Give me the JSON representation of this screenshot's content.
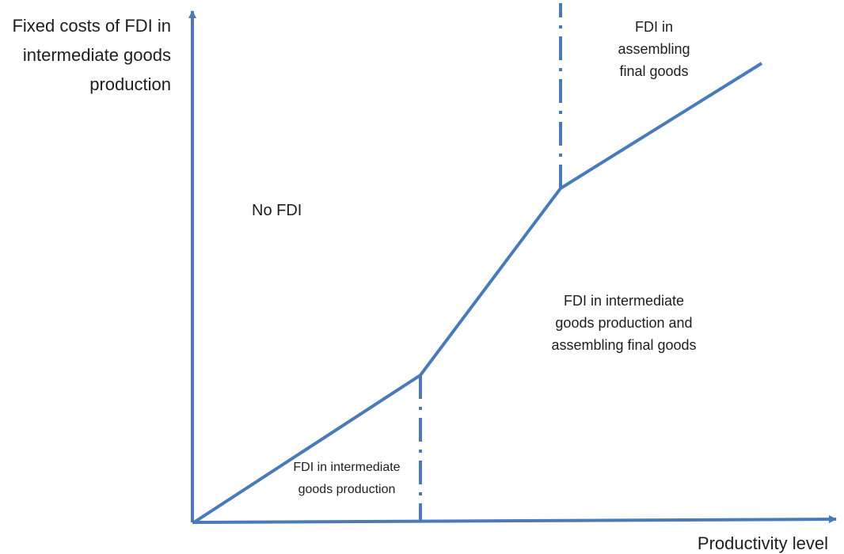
{
  "diagram": {
    "axis_y_label_lines": [
      "Fixed costs of FDI in",
      "intermediate goods",
      "production"
    ],
    "axis_x_label": "Productivity level",
    "regions": {
      "no_fdi": [
        "No FDI"
      ],
      "intermediate_only": [
        "FDI in intermediate",
        "goods production"
      ],
      "intermediate_and_assembly": [
        "FDI in intermediate",
        "goods production and",
        "assembling final goods"
      ],
      "assembly_only": [
        "FDI in",
        "assembling",
        "final goods"
      ]
    },
    "line_color": "#4a7ab8",
    "text_color": "#1e1e1e"
  }
}
